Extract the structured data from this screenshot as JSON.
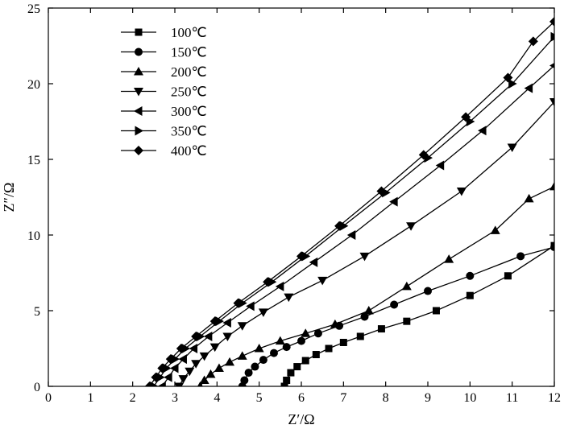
{
  "chart_data": {
    "type": "line",
    "title": "",
    "xlabel": "Z′/Ω",
    "ylabel": "Z″/Ω",
    "xlim": [
      0,
      12
    ],
    "ylim": [
      0,
      25
    ],
    "xticks": [
      "0",
      "1",
      "2",
      "3",
      "4",
      "5",
      "6",
      "7",
      "8",
      "9",
      "10",
      "11",
      "12"
    ],
    "yticks": [
      "0",
      "5",
      "10",
      "15",
      "20",
      "25"
    ],
    "grid": false,
    "legend_position": "top-left",
    "series": [
      {
        "name": "100℃",
        "marker": "square",
        "x": [
          5.6,
          5.65,
          5.75,
          5.9,
          6.1,
          6.35,
          6.65,
          7.0,
          7.4,
          7.9,
          8.5,
          9.2,
          10.0,
          10.9,
          12.0
        ],
        "y": [
          0,
          0.4,
          0.9,
          1.3,
          1.7,
          2.1,
          2.5,
          2.9,
          3.3,
          3.8,
          4.3,
          5.0,
          6.0,
          7.3,
          9.3
        ]
      },
      {
        "name": "150℃",
        "marker": "circle",
        "x": [
          4.6,
          4.65,
          4.75,
          4.9,
          5.1,
          5.35,
          5.65,
          6.0,
          6.4,
          6.9,
          7.5,
          8.2,
          9.0,
          10.0,
          11.2,
          12.0
        ],
        "y": [
          0,
          0.4,
          0.9,
          1.3,
          1.75,
          2.2,
          2.6,
          3.0,
          3.5,
          4.0,
          4.6,
          5.4,
          6.3,
          7.3,
          8.6,
          9.2
        ]
      },
      {
        "name": "200℃",
        "marker": "triangle-up",
        "x": [
          3.6,
          3.7,
          3.85,
          4.05,
          4.3,
          4.6,
          5.0,
          5.5,
          6.1,
          6.8,
          7.6,
          8.5,
          9.5,
          10.6,
          11.4,
          12.0
        ],
        "y": [
          0,
          0.4,
          0.8,
          1.2,
          1.6,
          2.0,
          2.5,
          3.0,
          3.5,
          4.1,
          5.0,
          6.6,
          8.4,
          10.3,
          12.4,
          13.2
        ]
      },
      {
        "name": "250℃",
        "marker": "triangle-down",
        "x": [
          3.1,
          3.2,
          3.35,
          3.5,
          3.7,
          3.95,
          4.25,
          4.6,
          5.1,
          5.7,
          6.5,
          7.5,
          8.6,
          9.8,
          11.0,
          12.0
        ],
        "y": [
          0,
          0.5,
          1.0,
          1.5,
          2.0,
          2.6,
          3.3,
          4.0,
          4.9,
          5.9,
          7.0,
          8.6,
          10.6,
          12.9,
          15.8,
          18.8
        ]
      },
      {
        "name": "300℃",
        "marker": "triangle-left",
        "x": [
          2.7,
          2.85,
          3.0,
          3.2,
          3.45,
          3.8,
          4.25,
          4.8,
          5.5,
          6.3,
          7.2,
          8.2,
          9.3,
          10.3,
          11.4,
          12.0
        ],
        "y": [
          0,
          0.6,
          1.2,
          1.8,
          2.5,
          3.3,
          4.2,
          5.3,
          6.6,
          8.2,
          10.0,
          12.2,
          14.6,
          16.9,
          19.7,
          21.2
        ]
      },
      {
        "name": "350℃",
        "marker": "triangle-right",
        "x": [
          2.5,
          2.65,
          2.8,
          3.0,
          3.25,
          3.6,
          4.05,
          4.6,
          5.3,
          6.1,
          7.0,
          8.0,
          9.0,
          10.0,
          11.0,
          12.0
        ],
        "y": [
          0,
          0.6,
          1.2,
          1.8,
          2.5,
          3.3,
          4.3,
          5.5,
          6.9,
          8.6,
          10.6,
          12.8,
          15.1,
          17.5,
          20.0,
          23.1
        ]
      },
      {
        "name": "400℃",
        "marker": "diamond",
        "x": [
          2.4,
          2.55,
          2.7,
          2.9,
          3.15,
          3.5,
          3.95,
          4.5,
          5.2,
          6.0,
          6.9,
          7.9,
          8.9,
          9.9,
          10.9,
          11.5,
          12.0
        ],
        "y": [
          0,
          0.6,
          1.2,
          1.8,
          2.5,
          3.3,
          4.3,
          5.5,
          6.9,
          8.6,
          10.6,
          12.9,
          15.3,
          17.8,
          20.4,
          22.8,
          24.1
        ]
      }
    ]
  }
}
